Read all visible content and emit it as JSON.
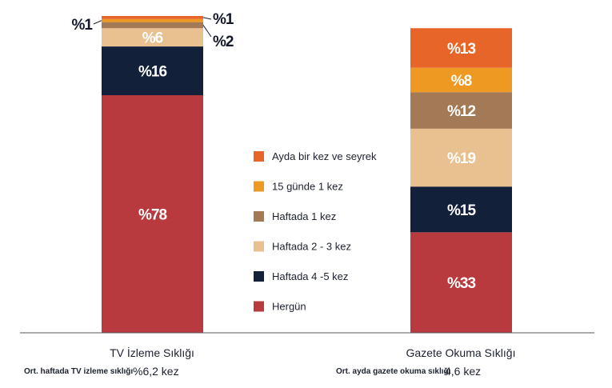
{
  "chart_data": {
    "type": "stacked-bar",
    "categories": [
      "TV İzleme Sıklığı",
      "Gazete Okuma Sıklığı"
    ],
    "series": [
      {
        "name": "Hergün",
        "color": "#b93a3e",
        "values": [
          78,
          33
        ],
        "labels": [
          "%78",
          "%33"
        ]
      },
      {
        "name": "Haftada 4 -5 kez",
        "color": "#13203a",
        "values": [
          16,
          15
        ],
        "labels": [
          "%16",
          "%15"
        ]
      },
      {
        "name": "Haftada 2 - 3 kez",
        "color": "#e9c08f",
        "values": [
          6,
          19
        ],
        "labels": [
          "%6",
          "%19"
        ]
      },
      {
        "name": "Haftada 1 kez",
        "color": "#a37a55",
        "values": [
          2,
          12
        ],
        "labels": [
          "%2",
          "%12"
        ]
      },
      {
        "name": "15 günde 1 kez",
        "color": "#ee9a22",
        "values": [
          1,
          8
        ],
        "labels": [
          "%1",
          "%8"
        ]
      },
      {
        "name": "Ayda bir kez ve seyrek",
        "color": "#e8652a",
        "values": [
          1,
          13
        ],
        "labels": [
          "%1",
          "%13"
        ]
      }
    ],
    "legend_order": [
      "Ayda bir kez ve seyrek",
      "15 günde 1 kez",
      "Haftada 1 kez",
      "Haftada 2 - 3 kez",
      "Haftada 4 -5 kez",
      "Hergün"
    ],
    "ylim": [
      0,
      104
    ],
    "notes": [
      {
        "label": "Ort. haftada TV izleme sıklığı",
        "value": "%6,2 kez"
      },
      {
        "label": "Ort. ayda gazete okuma sıklığı",
        "value": "4,6 kez"
      }
    ]
  }
}
